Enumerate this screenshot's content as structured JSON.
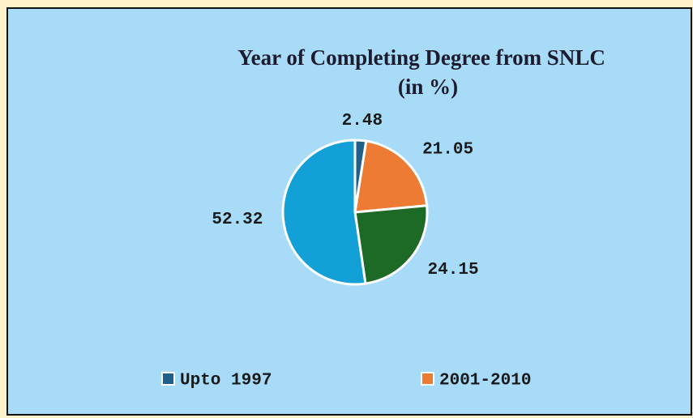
{
  "chart_data": {
    "type": "pie",
    "title": [
      "Year of Completing Degree from SNLC",
      "(in %)"
    ],
    "categories": [
      "Upto 1997",
      "2001-2010",
      null,
      null
    ],
    "values": [
      2.48,
      21.05,
      24.15,
      52.32
    ],
    "colors": [
      "#1f5f8a",
      "#ee7b33",
      "#1d6a26",
      "#12a0d7"
    ],
    "legend": "bottom"
  }
}
